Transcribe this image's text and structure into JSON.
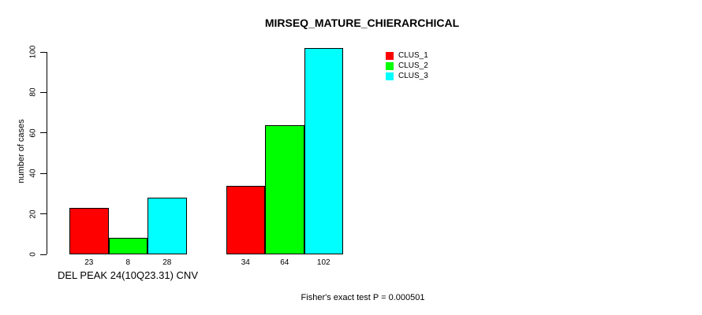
{
  "chart": {
    "title": "MIRSEQ_MATURE_CHIERARCHICAL",
    "ylabel": "number of cases",
    "xlabel": "DEL PEAK 24(10Q23.31) CNV",
    "footer": "Fisher's exact test P = 0.000501"
  },
  "legend": {
    "items": [
      {
        "label": "CLUS_1",
        "color": "#ff0000"
      },
      {
        "label": "CLUS_2",
        "color": "#00ff00"
      },
      {
        "label": "CLUS_3",
        "color": "#00ffff"
      }
    ]
  },
  "chart_data": {
    "type": "bar",
    "title": "MIRSEQ_MATURE_CHIERARCHICAL",
    "xlabel": "DEL PEAK 24(10Q23.31) CNV",
    "ylabel": "number of cases",
    "annotation": "Fisher's exact test P = 0.000501",
    "ylim": [
      0,
      100
    ],
    "yticks": [
      0,
      20,
      40,
      60,
      80,
      100
    ],
    "grid": false,
    "legend_position": "top-right",
    "n_groups": 2,
    "series": [
      {
        "name": "CLUS_1",
        "color": "#ff0000",
        "values": [
          23,
          34
        ]
      },
      {
        "name": "CLUS_2",
        "color": "#00ff00",
        "values": [
          8,
          64
        ]
      },
      {
        "name": "CLUS_3",
        "color": "#00ffff",
        "values": [
          28,
          102
        ]
      }
    ],
    "bar_value_labels": [
      [
        23,
        8,
        28
      ],
      [
        34,
        64,
        102
      ]
    ]
  }
}
